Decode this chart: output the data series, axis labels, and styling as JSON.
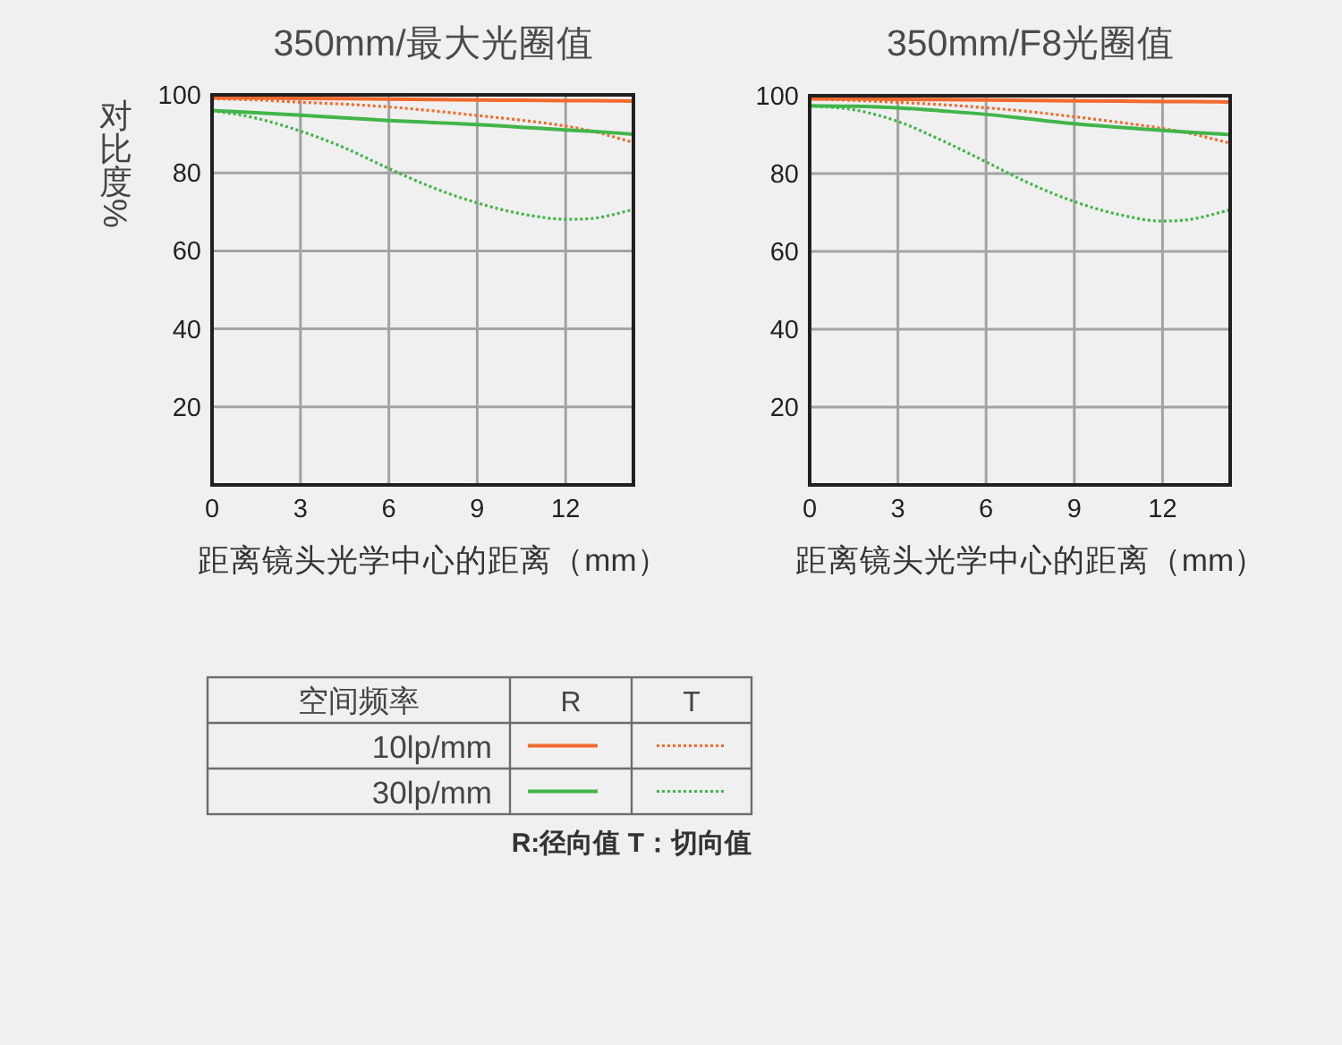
{
  "chart_data": [
    {
      "type": "line",
      "title": "350mm/最大光圈值",
      "xlabel": "距离镜头光学中心的距离（mm）",
      "ylabel": "对比度%",
      "legend_title": "空间频率",
      "annotations": [
        "R",
        "T",
        "R:径向值 T：切向值"
      ],
      "x": [
        0,
        1.5,
        3,
        4.5,
        6,
        7.5,
        9,
        10.5,
        12,
        13,
        14.3
      ],
      "xlim": [
        0,
        14.3
      ],
      "xticks": [
        0,
        3,
        6,
        9,
        12
      ],
      "ylim": [
        0,
        100
      ],
      "yticks": [
        20,
        40,
        60,
        80,
        100
      ],
      "grid": true,
      "legend": "bottom",
      "series": [
        {
          "name": "10lp/mm",
          "color": "#f26a2e",
          "line_style": "solid",
          "values": [
            99.2,
            99.2,
            99.1,
            99.0,
            98.9,
            98.8,
            98.7,
            98.6,
            98.5,
            98.5,
            98.4
          ]
        },
        {
          "color": "#f26a2e",
          "line_style": "dotted",
          "values": [
            99.0,
            98.7,
            98.1,
            97.6,
            96.9,
            95.9,
            94.7,
            93.5,
            92.0,
            90.5,
            87.8
          ]
        },
        {
          "name": "30lp/mm",
          "color": "#42b54a",
          "line_style": "solid",
          "values": [
            96.0,
            95.4,
            94.8,
            94.1,
            93.4,
            92.9,
            92.4,
            91.7,
            91.0,
            90.6,
            89.9
          ]
        },
        {
          "color": "#42b54a",
          "line_style": "dotted",
          "values": [
            96.0,
            94.0,
            90.7,
            86.4,
            81.1,
            76.2,
            72.3,
            69.5,
            68.1,
            68.4,
            70.6
          ]
        }
      ]
    },
    {
      "type": "line",
      "title": "350mm/F8光圈值",
      "xlabel": "距离镜头光学中心的距离（mm）",
      "x": [
        0,
        1.5,
        3,
        4.5,
        6,
        7.5,
        9,
        10.5,
        12,
        13,
        14.3
      ],
      "xlim": [
        0,
        14.3
      ],
      "xticks": [
        0,
        3,
        6,
        9,
        12
      ],
      "ylim": [
        0,
        100
      ],
      "yticks": [
        20,
        40,
        60,
        80,
        100
      ],
      "grid": true,
      "series": [
        {
          "color": "#f26a2e",
          "line_style": "solid",
          "values": [
            99.2,
            99.2,
            99.1,
            99.0,
            98.9,
            98.8,
            98.7,
            98.6,
            98.5,
            98.5,
            98.4
          ]
        },
        {
          "color": "#f26a2e",
          "line_style": "dotted",
          "values": [
            99.2,
            98.8,
            98.3,
            97.7,
            96.9,
            95.9,
            94.6,
            93.2,
            91.6,
            90.2,
            87.8
          ]
        },
        {
          "color": "#42b54a",
          "line_style": "solid",
          "values": [
            97.4,
            97.3,
            96.9,
            96.1,
            95.2,
            94.0,
            92.8,
            91.9,
            91.1,
            90.6,
            90.0
          ]
        },
        {
          "color": "#42b54a",
          "line_style": "dotted",
          "values": [
            97.4,
            96.4,
            93.4,
            88.5,
            83.0,
            77.4,
            72.8,
            69.5,
            67.8,
            68.3,
            70.7
          ]
        }
      ]
    }
  ]
}
